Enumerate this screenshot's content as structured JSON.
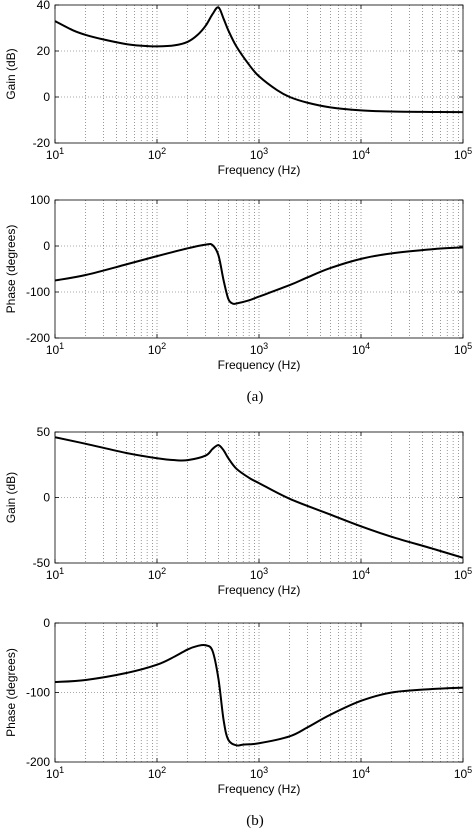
{
  "figure": {
    "panel_labels": [
      "(a)",
      "(b)"
    ]
  },
  "colors": {
    "curve": "#000000",
    "grid": "#555555",
    "frame": "#000000",
    "background": "#ffffff"
  },
  "chart_data": [
    {
      "type": "line",
      "panel": "(a)",
      "xlabel": "Frequency (Hz)",
      "ylabel": "Gain (dB)",
      "xscale": "log",
      "xlim": [
        10,
        100000
      ],
      "ylim": [
        -20,
        40
      ],
      "yticks": [
        -20,
        0,
        20,
        40
      ],
      "grid": "dotted vertical",
      "series": [
        {
          "x": [
            10,
            15,
            20,
            30,
            50,
            70,
            100,
            150,
            200,
            250,
            300,
            350,
            400,
            450,
            500,
            600,
            800,
            1000,
            1500,
            2000,
            3000,
            5000,
            10000,
            20000,
            50000,
            100000
          ],
          "y": [
            33,
            29,
            27,
            25,
            23,
            22.3,
            22,
            22.5,
            24,
            27,
            31,
            36,
            39,
            34,
            29,
            22,
            14,
            9,
            3,
            0,
            -2.5,
            -4.5,
            -5.8,
            -6.3,
            -6.5,
            -6.6
          ]
        }
      ]
    },
    {
      "type": "line",
      "panel": "(a)",
      "xlabel": "Frequency (Hz)",
      "ylabel": "Phase (degrees)",
      "xscale": "log",
      "xlim": [
        10,
        100000
      ],
      "ylim": [
        -200,
        100
      ],
      "yticks": [
        -200,
        -100,
        0,
        100
      ],
      "grid": "dotted vertical",
      "series": [
        {
          "x": [
            10,
            20,
            50,
            100,
            200,
            300,
            350,
            400,
            450,
            500,
            550,
            600,
            800,
            1000,
            2000,
            3000,
            5000,
            10000,
            20000,
            50000,
            100000
          ],
          "y": [
            -75,
            -63,
            -40,
            -22,
            -5,
            3,
            2,
            -20,
            -75,
            -115,
            -125,
            -125,
            -118,
            -110,
            -85,
            -68,
            -48,
            -28,
            -16,
            -7,
            -3
          ]
        }
      ]
    },
    {
      "type": "line",
      "panel": "(b)",
      "xlabel": "Frequency (Hz)",
      "ylabel": "Gain (dB)",
      "xscale": "log",
      "xlim": [
        10,
        100000
      ],
      "ylim": [
        -50,
        50
      ],
      "yticks": [
        -50,
        0,
        50
      ],
      "grid": "dotted vertical",
      "series": [
        {
          "x": [
            10,
            20,
            50,
            100,
            150,
            200,
            300,
            350,
            400,
            450,
            500,
            600,
            800,
            1000,
            2000,
            5000,
            10000,
            20000,
            50000,
            100000
          ],
          "y": [
            46,
            41,
            34,
            30,
            28.5,
            28.5,
            32,
            37,
            40,
            36,
            30,
            22,
            15,
            11,
            -1,
            -13,
            -22,
            -30,
            -39,
            -46
          ]
        }
      ]
    },
    {
      "type": "line",
      "panel": "(b)",
      "xlabel": "Frequency (Hz)",
      "ylabel": "Phase (degrees)",
      "xscale": "log",
      "xlim": [
        10,
        100000
      ],
      "ylim": [
        -200,
        0
      ],
      "yticks": [
        -200,
        -100,
        0
      ],
      "grid": "dotted vertical",
      "series": [
        {
          "x": [
            10,
            20,
            50,
            100,
            150,
            200,
            250,
            300,
            350,
            400,
            450,
            500,
            600,
            700,
            1000,
            2000,
            3000,
            5000,
            10000,
            20000,
            50000,
            100000
          ],
          "y": [
            -85,
            -82,
            -72,
            -60,
            -48,
            -38,
            -33,
            -32,
            -40,
            -80,
            -140,
            -168,
            -176,
            -175,
            -173,
            -163,
            -150,
            -132,
            -112,
            -100,
            -95,
            -93
          ]
        }
      ]
    }
  ]
}
